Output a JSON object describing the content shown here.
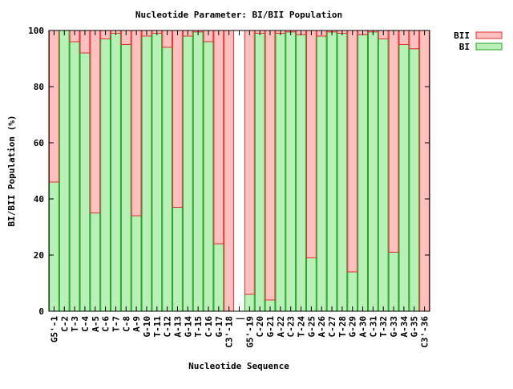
{
  "chart_data": {
    "type": "bar",
    "stacked": true,
    "title": "Nucleotide Parameter: BI/BII Population",
    "xlabel": "Nucleotide Sequence",
    "ylabel": "BI/BII Population (%)",
    "ylim": [
      0,
      100
    ],
    "yticks": [
      0,
      20,
      40,
      60,
      80,
      100
    ],
    "grid": false,
    "legend_position": "top-right, outside plot",
    "separator_label": "|",
    "categories": [
      "G5'-1",
      "C-2",
      "T-3",
      "C-4",
      "A-5",
      "C-6",
      "T-7",
      "C-8",
      "A-9",
      "G-10",
      "T-11",
      "C-12",
      "A-13",
      "G-14",
      "T-15",
      "C-16",
      "G-17",
      "C3'-18",
      "G5'-19",
      "C-20",
      "G-21",
      "A-22",
      "C-23",
      "T-24",
      "G-25",
      "A-26",
      "C-27",
      "T-28",
      "G-29",
      "A-30",
      "C-31",
      "T-32",
      "G-33",
      "A-34",
      "G-35",
      "C3'-36"
    ],
    "series": [
      {
        "name": "BII",
        "color": "#ffc0c0",
        "edge": "#e03030",
        "values": [
          54,
          0,
          4,
          8,
          65,
          3,
          1,
          5,
          66,
          2,
          1,
          6,
          63,
          2,
          0.5,
          4,
          76,
          100,
          94,
          1,
          96,
          1,
          0.5,
          1.5,
          81,
          2,
          0.5,
          1,
          86,
          1.5,
          0.5,
          3,
          79,
          5,
          6.5,
          100
        ]
      },
      {
        "name": "BI",
        "color": "#b8f0b8",
        "edge": "#20a020",
        "values": [
          46,
          100,
          96,
          92,
          35,
          97,
          99,
          95,
          34,
          98,
          99,
          94,
          37,
          98,
          99.5,
          96,
          24,
          0,
          6,
          99,
          4,
          99,
          99.5,
          98.5,
          19,
          98,
          99.5,
          99,
          14,
          98.5,
          99.5,
          97,
          21,
          95,
          93.5,
          0
        ]
      }
    ]
  }
}
